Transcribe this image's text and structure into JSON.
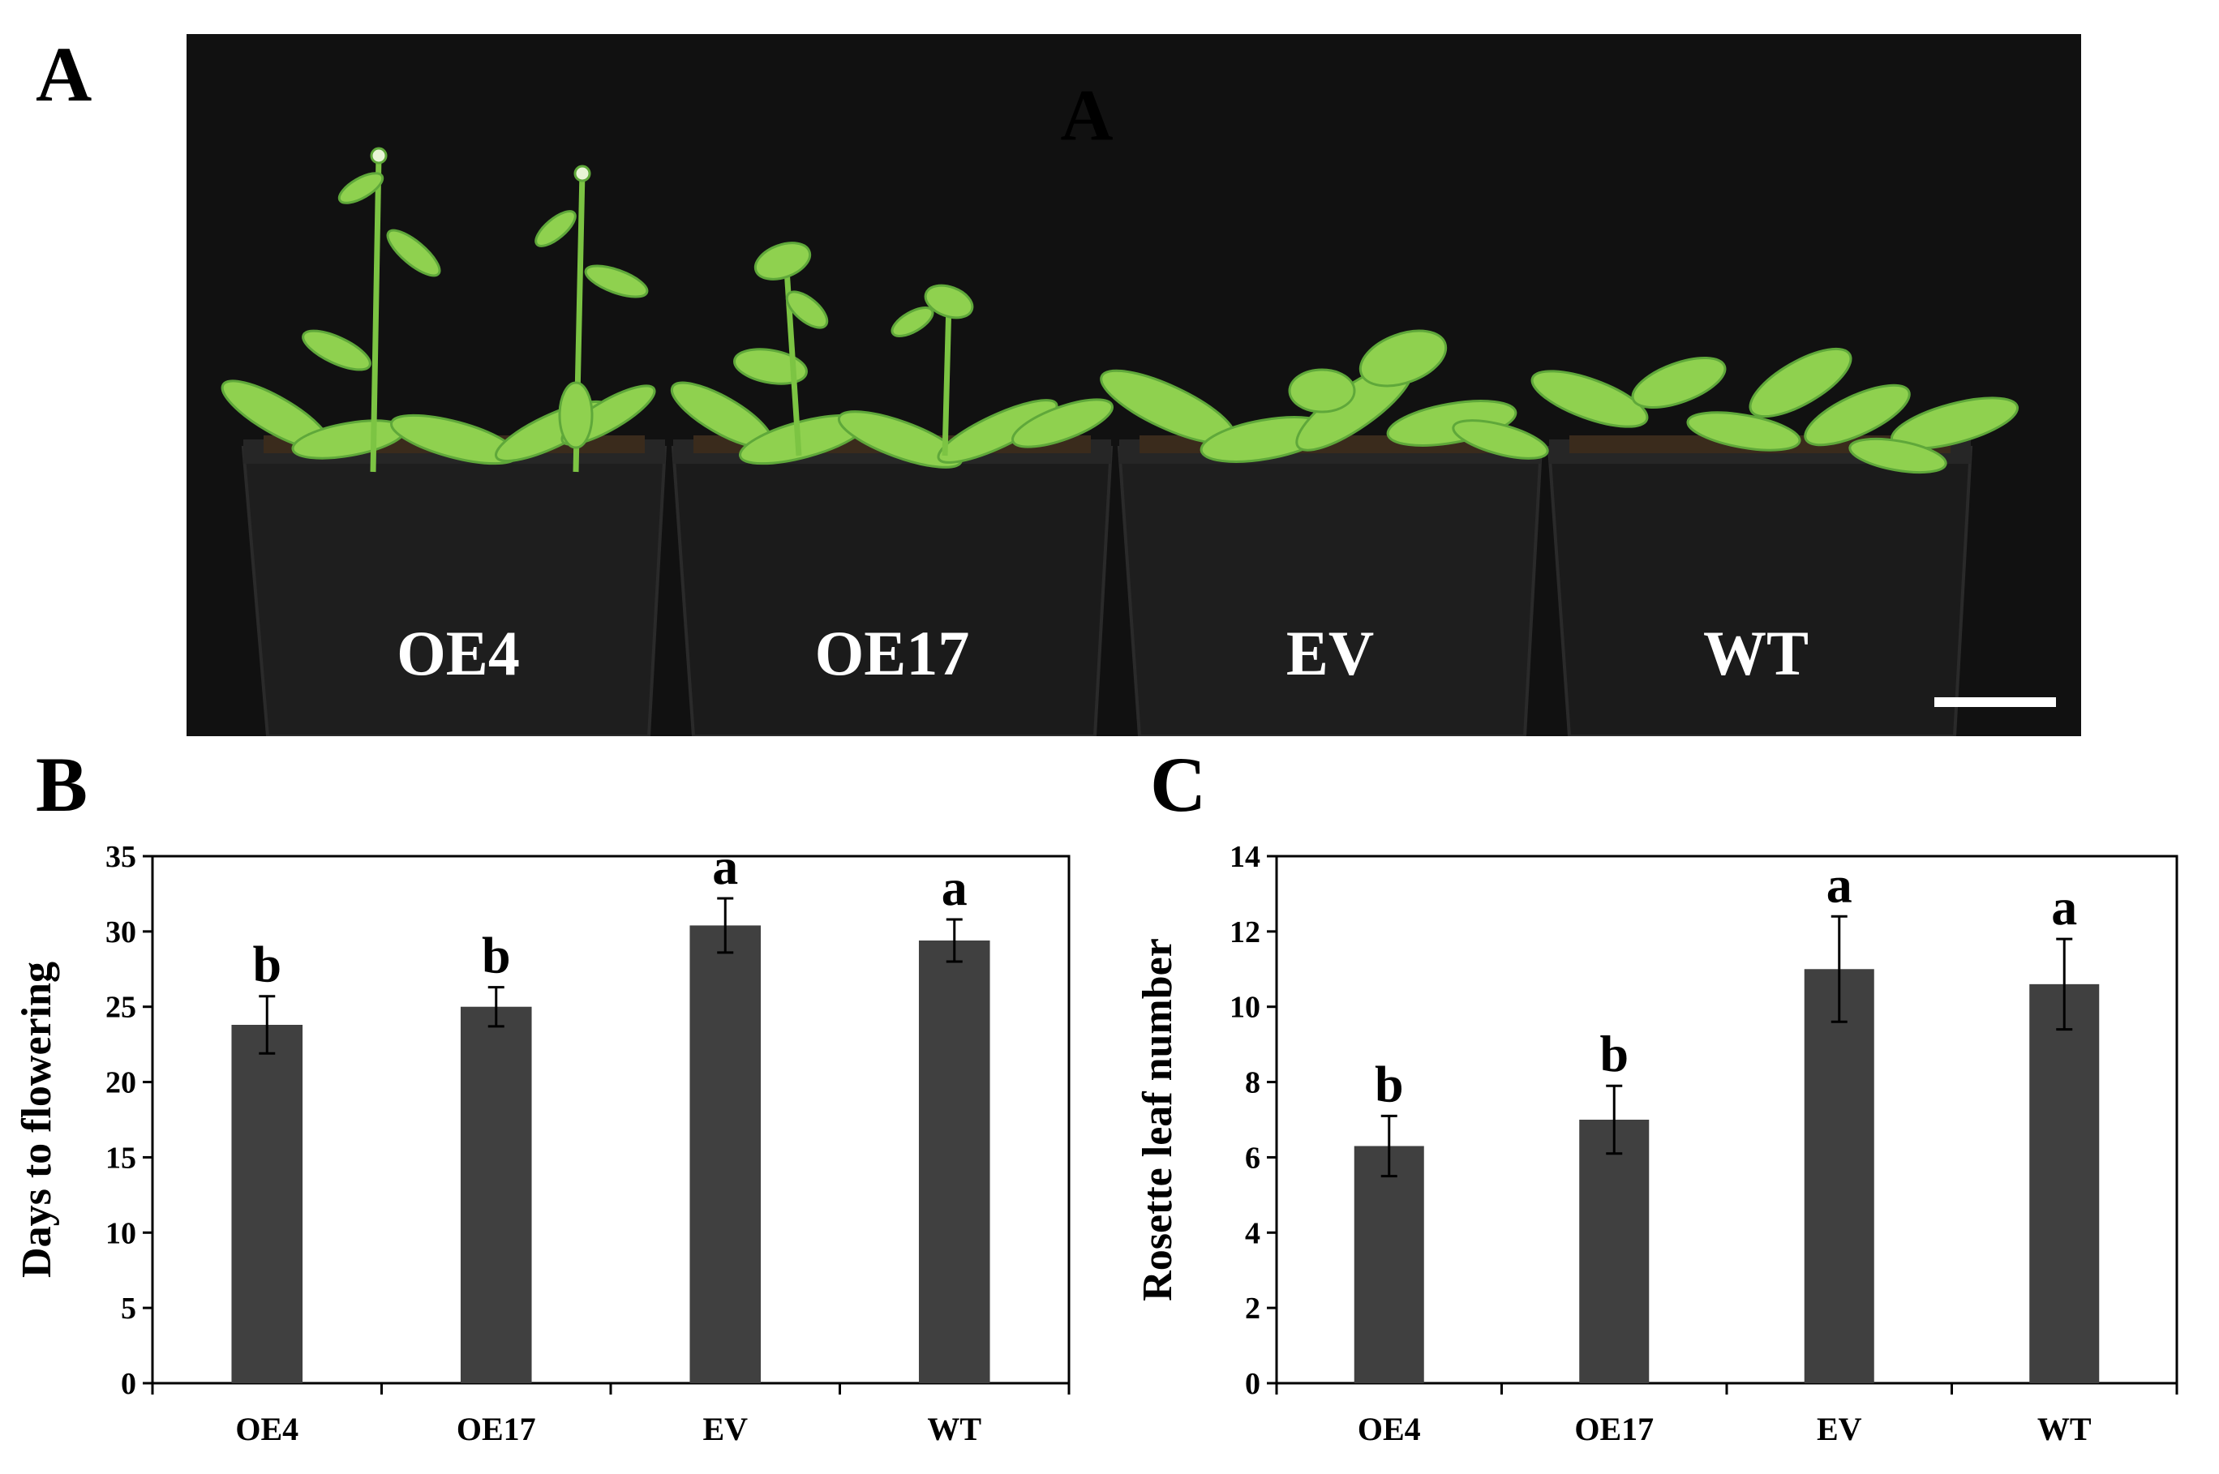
{
  "panels": {
    "a_letter": "A",
    "b_letter": "B",
    "c_letter": "C"
  },
  "photo": {
    "inner_letter": "A",
    "pot_labels": [
      "OE4",
      "OE17",
      "EV",
      "WT"
    ],
    "colors": {
      "background": "#111111",
      "pot": "#1f1f1f",
      "leaf": "#8fd14f",
      "leaf_dark": "#5fa83a",
      "soil": "#3a2b1c"
    }
  },
  "chart_data": [
    {
      "type": "bar",
      "title": "",
      "xlabel": "",
      "ylabel": "Days to flowering",
      "categories": [
        "OE4",
        "OE17",
        "EV",
        "WT"
      ],
      "values": [
        23.8,
        25.0,
        30.4,
        29.4
      ],
      "errors": [
        1.9,
        1.3,
        1.8,
        1.4
      ],
      "significance": [
        "b",
        "b",
        "a",
        "a"
      ],
      "ylim": [
        0,
        35
      ],
      "yticks": [
        0,
        5,
        10,
        15,
        20,
        25,
        30,
        35
      ],
      "bar_color": "#404040"
    },
    {
      "type": "bar",
      "title": "",
      "xlabel": "",
      "ylabel": "Rosette leaf number",
      "categories": [
        "OE4",
        "OE17",
        "EV",
        "WT"
      ],
      "values": [
        6.3,
        7.0,
        11.0,
        10.6
      ],
      "errors": [
        0.8,
        0.9,
        1.4,
        1.2
      ],
      "significance": [
        "b",
        "b",
        "a",
        "a"
      ],
      "ylim": [
        0,
        14
      ],
      "yticks": [
        0,
        2,
        4,
        6,
        8,
        10,
        12,
        14
      ],
      "bar_color": "#404040"
    }
  ]
}
